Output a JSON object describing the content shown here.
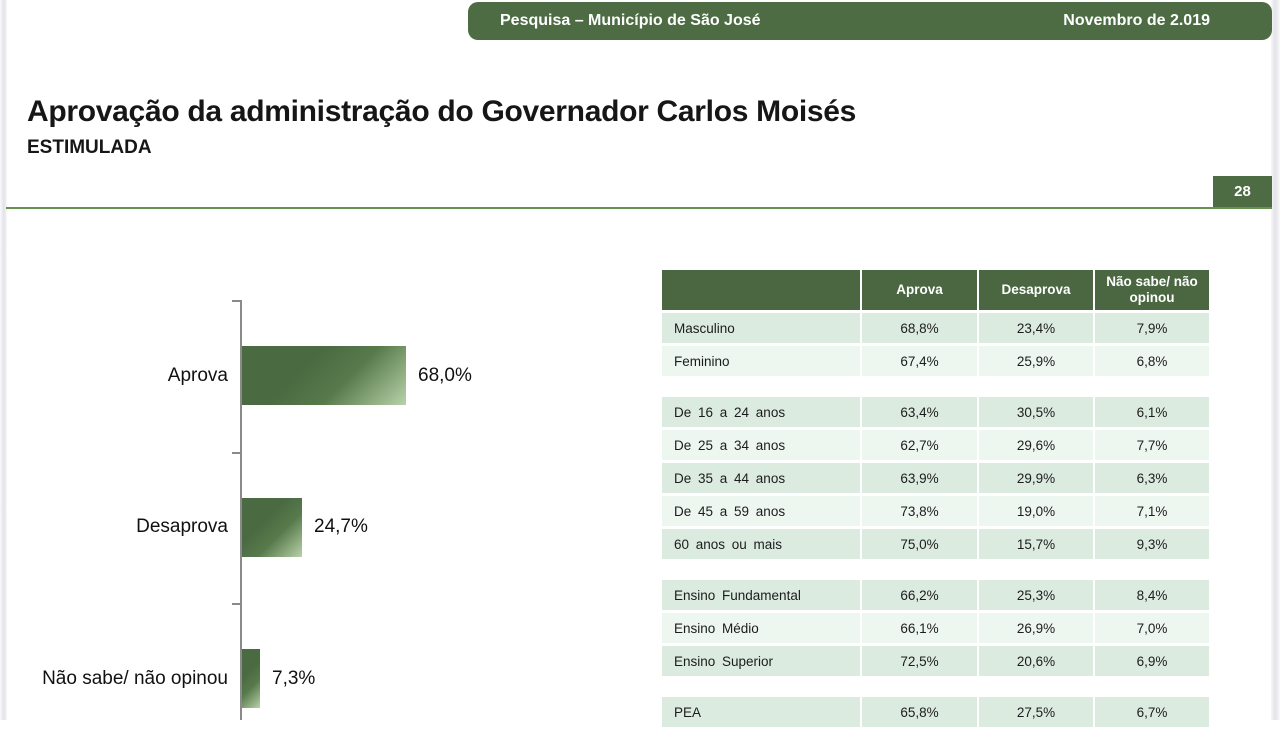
{
  "banner": {
    "left_text": "Pesquisa – Município de São José",
    "right_text": "Novembro de 2.019"
  },
  "title": "Aprovação da administração do Governador Carlos Moisés",
  "subtitle": "ESTIMULADA",
  "page_number": "28",
  "colors": {
    "banner_green": "#4d6c44",
    "table_header_green": "#4a6741",
    "bar_dark_green": "#4a6b42",
    "bar_light_green": "#b8d2a9",
    "row_dark_mint": "#dcebe0",
    "row_light_mint": "#eef6f0",
    "separator_green": "#679150"
  },
  "chart_data": {
    "type": "bar",
    "orientation": "horizontal",
    "title": "Aprovação da administração do Governador Carlos Moisés — ESTIMULADA",
    "categories": [
      "Aprova",
      "Desaprova",
      "Não sabe/ não opinou"
    ],
    "values": [
      68.0,
      24.7,
      7.3
    ],
    "value_labels": [
      "68,0%",
      "24,7%",
      "7,3%"
    ],
    "xlabel": "",
    "ylabel": "",
    "xlim": [
      0,
      100
    ],
    "grid": false,
    "legend": false
  },
  "table": {
    "headers": [
      "",
      "Aprova",
      "Desaprova",
      "Não sabe/ não opinou"
    ],
    "groups": [
      {
        "rows": [
          [
            "Masculino",
            "68,8%",
            "23,4%",
            "7,9%"
          ],
          [
            "Feminino",
            "67,4%",
            "25,9%",
            "6,8%"
          ]
        ]
      },
      {
        "rows": [
          [
            "De 16 a 24 anos",
            "63,4%",
            "30,5%",
            "6,1%"
          ],
          [
            "De 25 a 34 anos",
            "62,7%",
            "29,6%",
            "7,7%"
          ],
          [
            "De 35 a 44 anos",
            "63,9%",
            "29,9%",
            "6,3%"
          ],
          [
            "De 45 a 59 anos",
            "73,8%",
            "19,0%",
            "7,1%"
          ],
          [
            "60 anos ou mais",
            "75,0%",
            "15,7%",
            "9,3%"
          ]
        ]
      },
      {
        "rows": [
          [
            "Ensino Fundamental",
            "66,2%",
            "25,3%",
            "8,4%"
          ],
          [
            "Ensino Médio",
            "66,1%",
            "26,9%",
            "7,0%"
          ],
          [
            "Ensino Superior",
            "72,5%",
            "20,6%",
            "6,9%"
          ]
        ]
      },
      {
        "rows": [
          [
            "PEA",
            "65,8%",
            "27,5%",
            "6,7%"
          ]
        ]
      }
    ]
  }
}
